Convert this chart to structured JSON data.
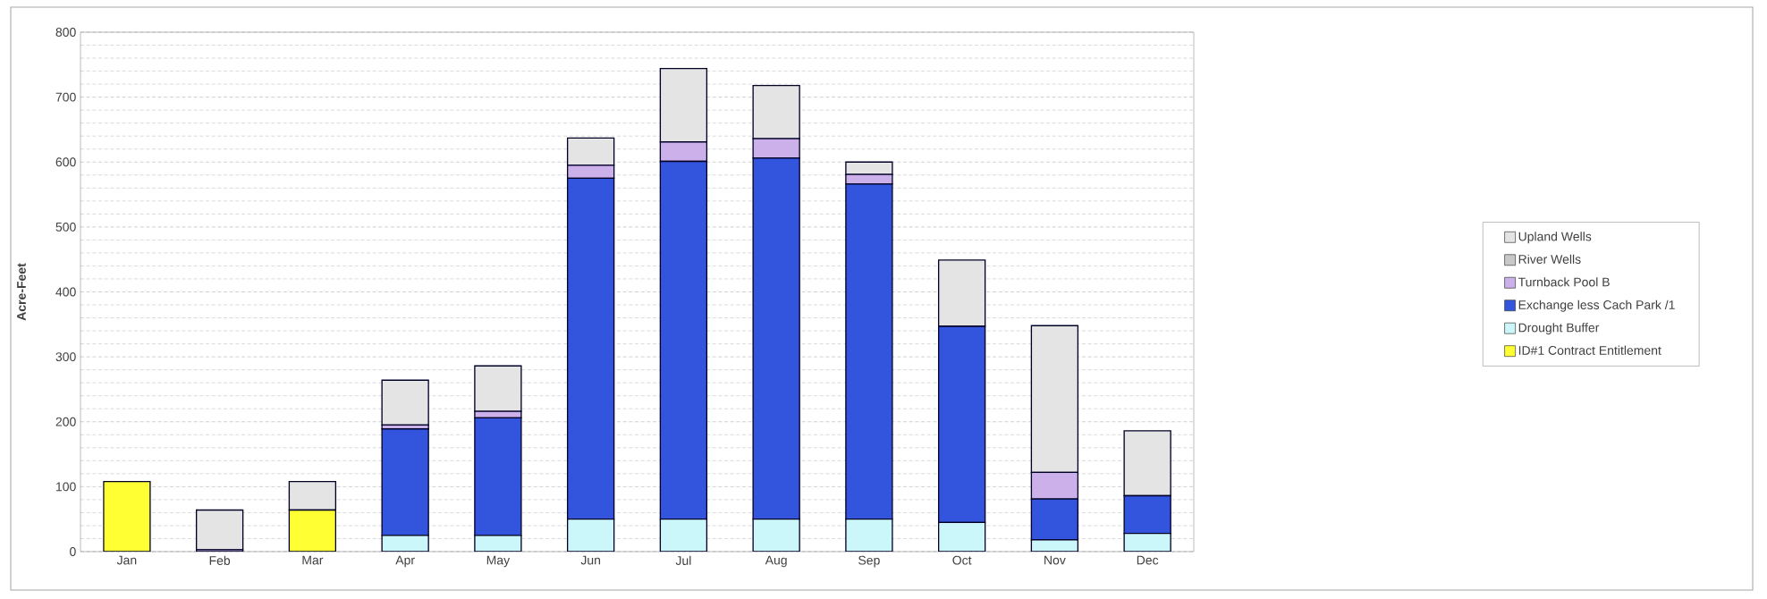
{
  "chart_data": {
    "type": "bar",
    "stacked": true,
    "ylabel": "Acre-Feet",
    "categories": [
      "Jan",
      "Feb",
      "Mar",
      "Apr",
      "May",
      "Jun",
      "Jul",
      "Aug",
      "Sep",
      "Oct",
      "Nov",
      "Dec"
    ],
    "series": [
      {
        "name": "ID#1 Contract Entitlement",
        "color": "#ffff33",
        "values": [
          108,
          0,
          64,
          0,
          0,
          0,
          0,
          0,
          0,
          0,
          0,
          0
        ]
      },
      {
        "name": "Drought Buffer",
        "color": "#ccf7fa",
        "values": [
          0,
          0,
          0,
          25,
          25,
          50,
          50,
          50,
          50,
          45,
          18,
          28
        ]
      },
      {
        "name": "Exchange less Cach Park /1",
        "color": "#3355dd",
        "values": [
          0,
          0,
          0,
          164,
          181,
          525,
          551,
          556,
          516,
          302,
          63,
          58
        ]
      },
      {
        "name": "Turnback Pool B",
        "color": "#cbb0ea",
        "values": [
          0,
          3,
          0,
          6,
          10,
          20,
          30,
          30,
          15,
          0,
          41,
          0
        ]
      },
      {
        "name": "River Wells",
        "color": "#c8c8c8",
        "values": [
          0,
          0,
          0,
          0,
          0,
          0,
          0,
          0,
          0,
          0,
          0,
          0
        ]
      },
      {
        "name": "Upland Wells",
        "color": "#e4e4e4",
        "values": [
          0,
          61,
          44,
          69,
          70,
          42,
          113,
          82,
          19,
          102,
          226,
          100
        ]
      }
    ],
    "ylim": [
      0,
      800
    ],
    "yticks": [
      0,
      100,
      200,
      300,
      400,
      500,
      600,
      700,
      800
    ],
    "grid": "y",
    "legend": "right"
  }
}
